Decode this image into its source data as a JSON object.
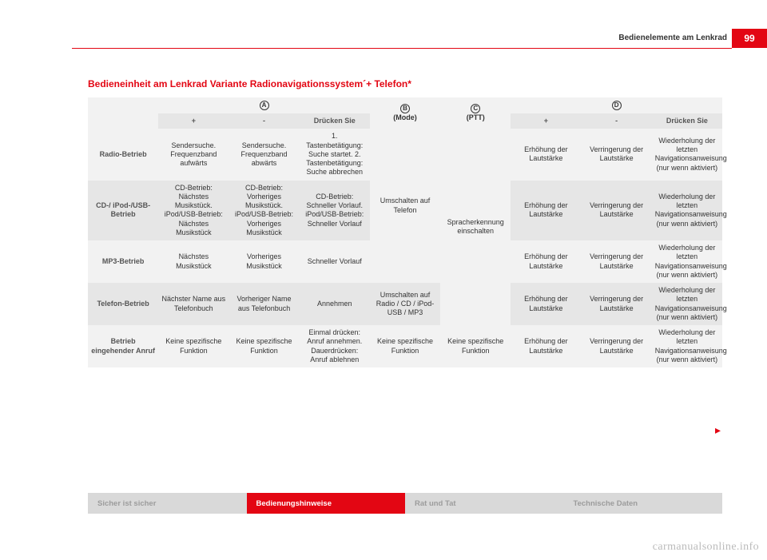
{
  "header": {
    "page_number": "99",
    "chapter": "Bedienelemente am Lenkrad"
  },
  "section_title": "Bedieneinheit am Lenkrad Variante Radionavigationssystem´+ Telefon*",
  "columns": {
    "groupA": {
      "marker": "A",
      "plus": "+",
      "minus": "-",
      "press": "Drücken Sie"
    },
    "groupB": {
      "marker": "B",
      "label": "(Mode)"
    },
    "groupC": {
      "marker": "C",
      "label": "(PTT)"
    },
    "groupD": {
      "marker": "D",
      "plus": "+",
      "minus": "-",
      "press": "Drücken Sie"
    }
  },
  "rows": [
    {
      "label": "Radio-Betrieb",
      "a_plus": "Sendersuche. Frequenzband aufwärts",
      "a_minus": "Sendersuche. Frequenzband abwärts",
      "a_press": "1. Tastenbetätigung: Suche startet.\n2. Tastenbetätigung: Suche abbrechen",
      "d_plus": "Erhöhung der Lautstärke",
      "d_minus": "Verringerung der Lautstärke",
      "d_press": "Wiederholung der letzten Navigationsanweisung (nur wenn aktiviert)"
    },
    {
      "label": "CD-/\niPod-/USB-Betrieb",
      "a_plus": "CD-Betrieb: Nächstes Musikstück.\niPod/USB-Betrieb: Nächstes Musikstück",
      "a_minus": "CD-Betrieb: Vorheriges Musikstück.\niPod/USB-Betrieb: Vorheriges Musikstück",
      "a_press": "CD-Betrieb: Schneller Vorlauf.\niPod/USB-Betrieb: Schneller Vorlauf",
      "d_plus": "Erhöhung der Lautstärke",
      "d_minus": "Verringerung der Lautstärke",
      "d_press": "Wiederholung der letzten Navigationsanweisung (nur wenn aktiviert)"
    },
    {
      "label": "MP3-Betrieb",
      "a_plus": "Nächstes Musikstück",
      "a_minus": "Vorheriges Musikstück",
      "a_press": "Schneller Vorlauf",
      "d_plus": "Erhöhung der Lautstärke",
      "d_minus": "Verringerung der Lautstärke",
      "d_press": "Wiederholung der letzten Navigationsanweisung (nur wenn aktiviert)"
    },
    {
      "label": "Telefon-Betrieb",
      "a_plus": "Nächster Name aus Telefonbuch",
      "a_minus": "Vorheriger Name aus Telefonbuch",
      "a_press": "Annehmen",
      "b_override": "Umschalten auf Radio / CD / iPod-USB / MP3",
      "d_plus": "Erhöhung der Lautstärke",
      "d_minus": "Verringerung der Lautstärke",
      "d_press": "Wiederholung der letzten Navigationsanweisung (nur wenn aktiviert)"
    },
    {
      "label": "Betrieb eingehender Anruf",
      "a_plus": "Keine spezifische Funktion",
      "a_minus": "Keine spezifische Funktion",
      "a_press": "Einmal drücken: Anruf annehmen.\nDauerdrücken: Anruf ablehnen",
      "b_override": "Keine spezifische Funktion",
      "c_override": "Keine spezifische Funktion",
      "d_plus": "Erhöhung der Lautstärke",
      "d_minus": "Verringerung der Lautstärke",
      "d_press": "Wiederholung der letzten Navigationsanweisung (nur wenn aktiviert)"
    }
  ],
  "merged": {
    "b_first3": "Umschalten auf Telefon",
    "c_first4": "Spracherkennung einschalten"
  },
  "footer_tabs": [
    {
      "label": "Sicher ist sicher",
      "active": false
    },
    {
      "label": "Bedienungshinweise",
      "active": true
    },
    {
      "label": "Rat und Tat",
      "active": false
    },
    {
      "label": "Technische Daten",
      "active": false
    }
  ],
  "watermark": "carmanualsonline.info"
}
